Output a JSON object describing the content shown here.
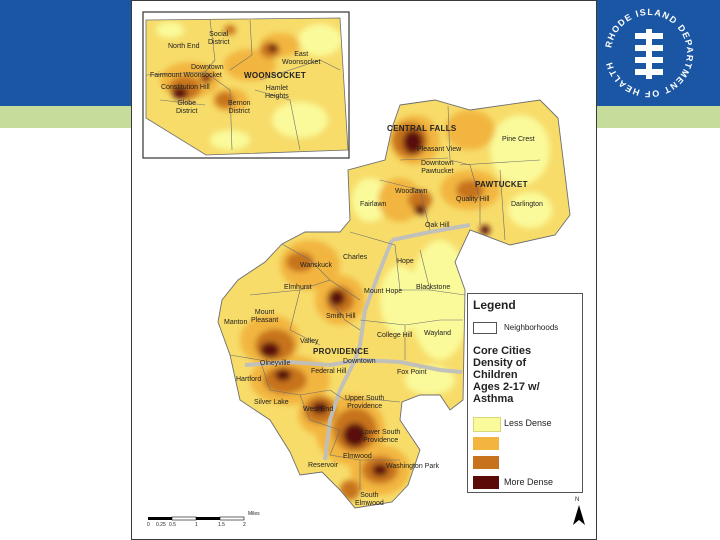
{
  "header": {
    "band_color": "#1a56a4",
    "accent_band_color": "#c6dc9a"
  },
  "logo": {
    "text": "RHODE ISLAND DEPARTMENT OF HEALTH",
    "icon": "ri-doh-seal-icon"
  },
  "inset": {
    "labels": {
      "social_district": "Social\nDistrict",
      "north_end": "North End",
      "east_woonsocket": "East\nWoonsocket",
      "downtown": "Downtown",
      "fairmount_woonsocket": "Fairmount Woonsocket",
      "woonsocket": "WOONSOCKET",
      "constitution_hill": "Constitution Hill",
      "hamlet_heights": "Hamlet\nHeights",
      "globe_district": "Globe\nDistrict",
      "bernon_district": "Bernon\nDistrict"
    }
  },
  "main_map": {
    "labels": {
      "central_falls": "CENTRAL FALLS",
      "pine_crest": "Pine Crest",
      "pleasant_view": "Pleasant View",
      "downtown_pawtucket": "Downtown\nPawtucket",
      "pawtucket": "PAWTUCKET",
      "woodlawn": "Woodlawn",
      "fairlawn": "Fairlawn",
      "quality_hill": "Quality Hill",
      "darlington": "Darlington",
      "oak_hill": "Oak Hill",
      "charles": "Charles",
      "hope": "Hope",
      "wanskuck": "Wanskuck",
      "elmhurst": "Elmhurst",
      "mount_hope": "Mount Hope",
      "blackstone": "Blackstone",
      "mount_pleasant": "Mount\nPleasant",
      "manton": "Manton",
      "smith_hill": "Smith Hill",
      "college_hill": "College Hill",
      "wayland": "Wayland",
      "valley": "Valley",
      "providence": "PROVIDENCE",
      "olneyville": "Olneyville",
      "downtown": "Downtown",
      "federal_hill": "Federal Hill",
      "fox_point": "Fox Point",
      "hartford": "Hartford",
      "upper_south_providence": "Upper South\nProvidence",
      "silver_lake": "Silver Lake",
      "west_end": "West End",
      "lower_south_providence": "Lower South\nProvidence",
      "elmwood": "Elmwood",
      "reservoir": "Reservoir",
      "washington_park": "Washington Park",
      "south_elmwood": "South\nElmwood"
    }
  },
  "legend": {
    "title": "Legend",
    "neighborhoods_label": "Neighborhoods",
    "subtitle": "Core Cities\nDensity of\nChildren\nAges 2-17 w/\nAsthma",
    "classes": [
      {
        "label": "Less Dense",
        "color": "#fafa9a"
      },
      {
        "label": "",
        "color": "#f2b640"
      },
      {
        "label": "",
        "color": "#c7731e"
      },
      {
        "label": "More Dense",
        "color": "#5a0a07"
      }
    ]
  },
  "scale": {
    "ticks": [
      "0",
      "0.25",
      "0.5",
      "1",
      "1.5",
      "2"
    ],
    "unit": "Miles"
  },
  "north_arrow": {
    "label": "N"
  },
  "colors": {
    "less_dense": "#fafa9a",
    "light": "#f7dc6a",
    "medium": "#f2b640",
    "high": "#c7731e",
    "highest": "#5a0a07",
    "boundary": "#6e6e6e",
    "highway": "#bfbfbf"
  }
}
